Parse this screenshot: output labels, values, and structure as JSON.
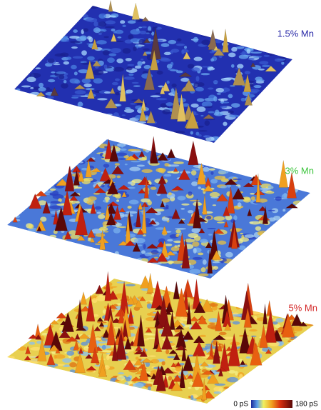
{
  "panels": [
    {
      "label": "1.5% Mn",
      "color": "#2a2aa8"
    },
    {
      "label": "3% Mn",
      "color": "#3cc43c"
    },
    {
      "label": "5% Mn",
      "color": "#d42828"
    }
  ],
  "colorbar": {
    "min_label": "0 pS",
    "max_label": "180 pS"
  }
}
